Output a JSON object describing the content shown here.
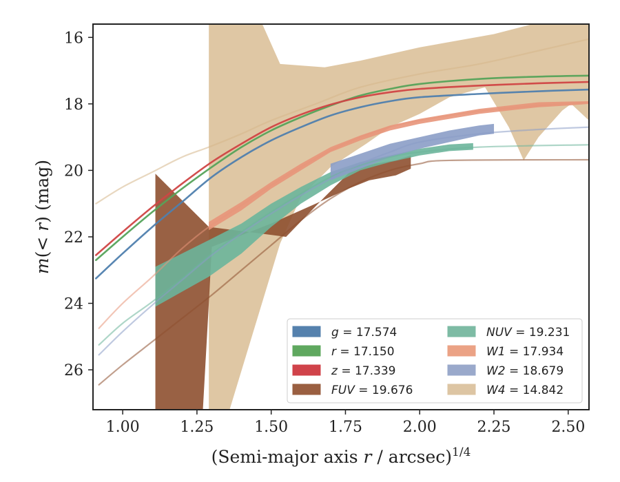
{
  "chart_data": {
    "type": "line",
    "title": "",
    "xlabel_main": "(Semi-major axis ",
    "xlabel_var": "r",
    "xlabel_tail": " / arcsec)",
    "xlabel_sup": "1/4",
    "ylabel_prefix": "m(< ",
    "ylabel_var": "r",
    "ylabel_suffix": ") (mag)",
    "xlim": [
      0.9,
      2.57
    ],
    "ylim": [
      27.2,
      15.6
    ],
    "y_inverted": true,
    "grid": false,
    "legend_position": "lower-right",
    "xticks": [
      "1.00",
      "1.25",
      "1.50",
      "1.75",
      "2.00",
      "2.25",
      "2.50"
    ],
    "xtick_values": [
      1.0,
      1.25,
      1.5,
      1.75,
      2.0,
      2.25,
      2.5
    ],
    "yticks": [
      "16",
      "18",
      "20",
      "22",
      "24",
      "26"
    ],
    "ytick_values": [
      16,
      18,
      20,
      22,
      24,
      26
    ],
    "series": [
      {
        "key": "W4",
        "label": "W4",
        "value": "14.842",
        "color": "#d6b78a",
        "data_start": 1.29,
        "band_upper": [
          [
            1.29,
            15.6
          ],
          [
            1.47,
            15.6
          ],
          [
            1.53,
            16.8
          ],
          [
            1.68,
            16.9
          ],
          [
            1.8,
            16.7
          ],
          [
            2.0,
            16.3
          ],
          [
            2.25,
            15.9
          ],
          [
            2.38,
            15.6
          ],
          [
            2.57,
            15.6
          ]
        ],
        "band_lower": [
          [
            1.29,
            27.2
          ],
          [
            1.36,
            27.2
          ],
          [
            1.53,
            22.2
          ],
          [
            1.6,
            20.8
          ],
          [
            1.7,
            19.9
          ],
          [
            1.82,
            19.2
          ],
          [
            1.9,
            18.7
          ],
          [
            2.0,
            18.3
          ],
          [
            2.1,
            17.8
          ],
          [
            2.22,
            17.5
          ],
          [
            2.3,
            18.7
          ],
          [
            2.35,
            19.7
          ],
          [
            2.4,
            19.0
          ],
          [
            2.48,
            18.2
          ],
          [
            2.51,
            18.0
          ],
          [
            2.57,
            18.5
          ]
        ],
        "model": [
          [
            0.91,
            21.0
          ],
          [
            1.0,
            20.5
          ],
          [
            1.1,
            20.05
          ],
          [
            1.2,
            19.6
          ],
          [
            1.29,
            19.3
          ],
          [
            1.4,
            18.9
          ],
          [
            1.5,
            18.5
          ],
          [
            1.65,
            18.0
          ],
          [
            1.8,
            17.5
          ],
          [
            2.0,
            17.1
          ],
          [
            2.2,
            16.8
          ],
          [
            2.4,
            16.4
          ],
          [
            2.57,
            16.05
          ]
        ]
      },
      {
        "key": "FUV",
        "label": "FUV",
        "value": "19.676",
        "color": "#8e5030",
        "data_start": 1.11,
        "band_upper": [
          [
            1.11,
            20.1
          ],
          [
            1.29,
            21.7
          ],
          [
            1.55,
            22.0
          ],
          [
            1.68,
            20.8
          ],
          [
            1.77,
            20.0
          ],
          [
            1.85,
            19.8
          ],
          [
            1.92,
            19.7
          ],
          [
            1.97,
            19.55
          ]
        ],
        "band_lower": [
          [
            1.11,
            27.2
          ],
          [
            1.27,
            27.2
          ],
          [
            1.29,
            24.0
          ],
          [
            1.3,
            22.3
          ],
          [
            1.5,
            21.6
          ],
          [
            1.65,
            21.0
          ],
          [
            1.76,
            20.55
          ],
          [
            1.83,
            20.3
          ],
          [
            1.92,
            20.15
          ],
          [
            1.97,
            19.95
          ]
        ],
        "model": [
          [
            0.92,
            26.45
          ],
          [
            1.0,
            25.85
          ],
          [
            1.1,
            25.15
          ],
          [
            1.2,
            24.45
          ],
          [
            1.3,
            23.75
          ],
          [
            1.4,
            23.0
          ],
          [
            1.5,
            22.25
          ],
          [
            1.6,
            21.5
          ],
          [
            1.7,
            20.85
          ],
          [
            1.8,
            20.35
          ],
          [
            1.9,
            20.0
          ],
          [
            2.0,
            19.8
          ],
          [
            2.1,
            19.7
          ],
          [
            2.57,
            19.68
          ]
        ]
      },
      {
        "key": "NUV",
        "label": "NUV",
        "value": "19.231",
        "color": "#6cb59b",
        "data_start": 1.11,
        "band_upper": [
          [
            1.11,
            22.9
          ],
          [
            1.29,
            22.1
          ],
          [
            1.4,
            21.6
          ],
          [
            1.5,
            21.0
          ],
          [
            1.6,
            20.5
          ],
          [
            1.7,
            20.05
          ],
          [
            1.8,
            19.75
          ],
          [
            1.9,
            19.55
          ],
          [
            2.0,
            19.35
          ],
          [
            2.1,
            19.22
          ],
          [
            2.18,
            19.18
          ]
        ],
        "band_lower": [
          [
            1.11,
            24.1
          ],
          [
            1.29,
            23.2
          ],
          [
            1.4,
            22.5
          ],
          [
            1.5,
            21.7
          ],
          [
            1.6,
            21.0
          ],
          [
            1.7,
            20.45
          ],
          [
            1.8,
            20.0
          ],
          [
            1.9,
            19.75
          ],
          [
            2.0,
            19.55
          ],
          [
            2.1,
            19.42
          ],
          [
            2.18,
            19.38
          ]
        ],
        "model": [
          [
            0.92,
            25.25
          ],
          [
            1.0,
            24.6
          ],
          [
            1.1,
            23.95
          ],
          [
            1.2,
            23.25
          ],
          [
            1.3,
            22.5
          ],
          [
            1.4,
            21.85
          ],
          [
            1.5,
            21.25
          ],
          [
            1.6,
            20.7
          ],
          [
            1.7,
            20.2
          ],
          [
            1.8,
            19.85
          ],
          [
            1.9,
            19.6
          ],
          [
            2.0,
            19.45
          ],
          [
            2.2,
            19.3
          ],
          [
            2.57,
            19.23
          ]
        ]
      },
      {
        "key": "W2",
        "label": "W2",
        "value": "18.679",
        "color": "#8b9dc7",
        "data_start": 1.7,
        "band_upper": [
          [
            1.7,
            19.8
          ],
          [
            1.8,
            19.5
          ],
          [
            1.9,
            19.2
          ],
          [
            2.0,
            19.0
          ],
          [
            2.1,
            18.8
          ],
          [
            2.2,
            18.65
          ],
          [
            2.25,
            18.6
          ]
        ],
        "band_lower": [
          [
            1.7,
            20.3
          ],
          [
            1.8,
            19.95
          ],
          [
            1.9,
            19.6
          ],
          [
            2.0,
            19.35
          ],
          [
            2.1,
            19.15
          ],
          [
            2.2,
            18.95
          ],
          [
            2.25,
            18.9
          ]
        ],
        "model": [
          [
            0.92,
            25.55
          ],
          [
            1.0,
            24.85
          ],
          [
            1.1,
            24.05
          ],
          [
            1.2,
            23.3
          ],
          [
            1.3,
            22.55
          ],
          [
            1.4,
            21.9
          ],
          [
            1.5,
            21.3
          ],
          [
            1.6,
            20.75
          ],
          [
            1.7,
            20.25
          ],
          [
            1.8,
            19.8
          ],
          [
            1.9,
            19.45
          ],
          [
            2.0,
            19.15
          ],
          [
            2.2,
            18.9
          ],
          [
            2.4,
            18.77
          ],
          [
            2.57,
            18.7
          ]
        ]
      },
      {
        "key": "W1",
        "label": "W1",
        "value": "17.934",
        "color": "#e8957a",
        "data_start": 1.29,
        "band_upper": [
          [
            1.29,
            21.55
          ],
          [
            1.4,
            20.95
          ],
          [
            1.5,
            20.35
          ],
          [
            1.6,
            19.8
          ],
          [
            1.7,
            19.3
          ],
          [
            1.8,
            18.95
          ],
          [
            1.9,
            18.65
          ],
          [
            2.0,
            18.45
          ],
          [
            2.1,
            18.3
          ],
          [
            2.2,
            18.15
          ],
          [
            2.3,
            18.05
          ],
          [
            2.4,
            17.95
          ],
          [
            2.5,
            17.93
          ],
          [
            2.57,
            17.92
          ]
        ],
        "band_lower": [
          [
            1.29,
            21.8
          ],
          [
            1.4,
            21.2
          ],
          [
            1.5,
            20.55
          ],
          [
            1.6,
            20.0
          ],
          [
            1.7,
            19.45
          ],
          [
            1.8,
            19.1
          ],
          [
            1.9,
            18.8
          ],
          [
            2.0,
            18.6
          ],
          [
            2.1,
            18.45
          ],
          [
            2.2,
            18.3
          ],
          [
            2.3,
            18.2
          ],
          [
            2.4,
            18.1
          ],
          [
            2.5,
            18.05
          ],
          [
            2.57,
            18.0
          ]
        ],
        "model": [
          [
            0.92,
            24.75
          ],
          [
            1.0,
            24.0
          ],
          [
            1.1,
            23.2
          ],
          [
            1.2,
            22.35
          ],
          [
            1.29,
            21.7
          ],
          [
            1.4,
            21.05
          ],
          [
            1.5,
            20.45
          ],
          [
            1.6,
            19.9
          ],
          [
            1.7,
            19.4
          ],
          [
            1.8,
            19.0
          ],
          [
            1.9,
            18.7
          ],
          [
            2.0,
            18.5
          ],
          [
            2.2,
            18.22
          ],
          [
            2.4,
            18.05
          ],
          [
            2.57,
            17.95
          ]
        ]
      },
      {
        "key": "r",
        "label": "r",
        "value": "17.150",
        "color": "#55a35a",
        "data_start": 0.91,
        "model": [
          [
            0.91,
            22.7
          ],
          [
            1.0,
            22.0
          ],
          [
            1.1,
            21.25
          ],
          [
            1.2,
            20.55
          ],
          [
            1.3,
            19.9
          ],
          [
            1.4,
            19.3
          ],
          [
            1.5,
            18.8
          ],
          [
            1.6,
            18.4
          ],
          [
            1.7,
            18.05
          ],
          [
            1.8,
            17.75
          ],
          [
            1.9,
            17.55
          ],
          [
            2.0,
            17.4
          ],
          [
            2.2,
            17.25
          ],
          [
            2.4,
            17.18
          ],
          [
            2.57,
            17.15
          ]
        ]
      },
      {
        "key": "z",
        "label": "z",
        "value": "17.339",
        "color": "#d04545",
        "data_start": 0.91,
        "model": [
          [
            0.91,
            22.55
          ],
          [
            1.0,
            21.85
          ],
          [
            1.1,
            21.1
          ],
          [
            1.2,
            20.4
          ],
          [
            1.3,
            19.75
          ],
          [
            1.4,
            19.2
          ],
          [
            1.5,
            18.7
          ],
          [
            1.6,
            18.32
          ],
          [
            1.7,
            18.02
          ],
          [
            1.8,
            17.8
          ],
          [
            1.9,
            17.65
          ],
          [
            2.0,
            17.55
          ],
          [
            2.2,
            17.45
          ],
          [
            2.4,
            17.38
          ],
          [
            2.57,
            17.34
          ]
        ]
      },
      {
        "key": "g",
        "label": "g",
        "value": "17.574",
        "color": "#4f7fae",
        "data_start": 0.91,
        "model": [
          [
            0.91,
            23.25
          ],
          [
            1.0,
            22.5
          ],
          [
            1.1,
            21.7
          ],
          [
            1.2,
            20.95
          ],
          [
            1.3,
            20.2
          ],
          [
            1.4,
            19.6
          ],
          [
            1.5,
            19.1
          ],
          [
            1.6,
            18.7
          ],
          [
            1.7,
            18.35
          ],
          [
            1.8,
            18.1
          ],
          [
            1.9,
            17.92
          ],
          [
            2.0,
            17.8
          ],
          [
            2.2,
            17.7
          ],
          [
            2.4,
            17.62
          ],
          [
            2.57,
            17.57
          ]
        ]
      }
    ],
    "legend": [
      {
        "var": "g",
        "eq": " = 17.574",
        "color": "#5581ad"
      },
      {
        "var": "r",
        "eq": " = 17.150",
        "color": "#5fa85f"
      },
      {
        "var": "z",
        "eq": " = 17.339",
        "color": "#d0434a"
      },
      {
        "var": "FUV",
        "eq": " = 19.676",
        "color": "#9a5f41"
      },
      {
        "var": "NUV",
        "eq": " = 19.231",
        "color": "#7dbba4"
      },
      {
        "var": "W1",
        "eq": " = 17.934",
        "color": "#eba285"
      },
      {
        "var": "W2",
        "eq": " = 18.679",
        "color": "#9aa9cb"
      },
      {
        "var": "W4",
        "eq": " = 14.842",
        "color": "#ddc5a3"
      }
    ]
  }
}
